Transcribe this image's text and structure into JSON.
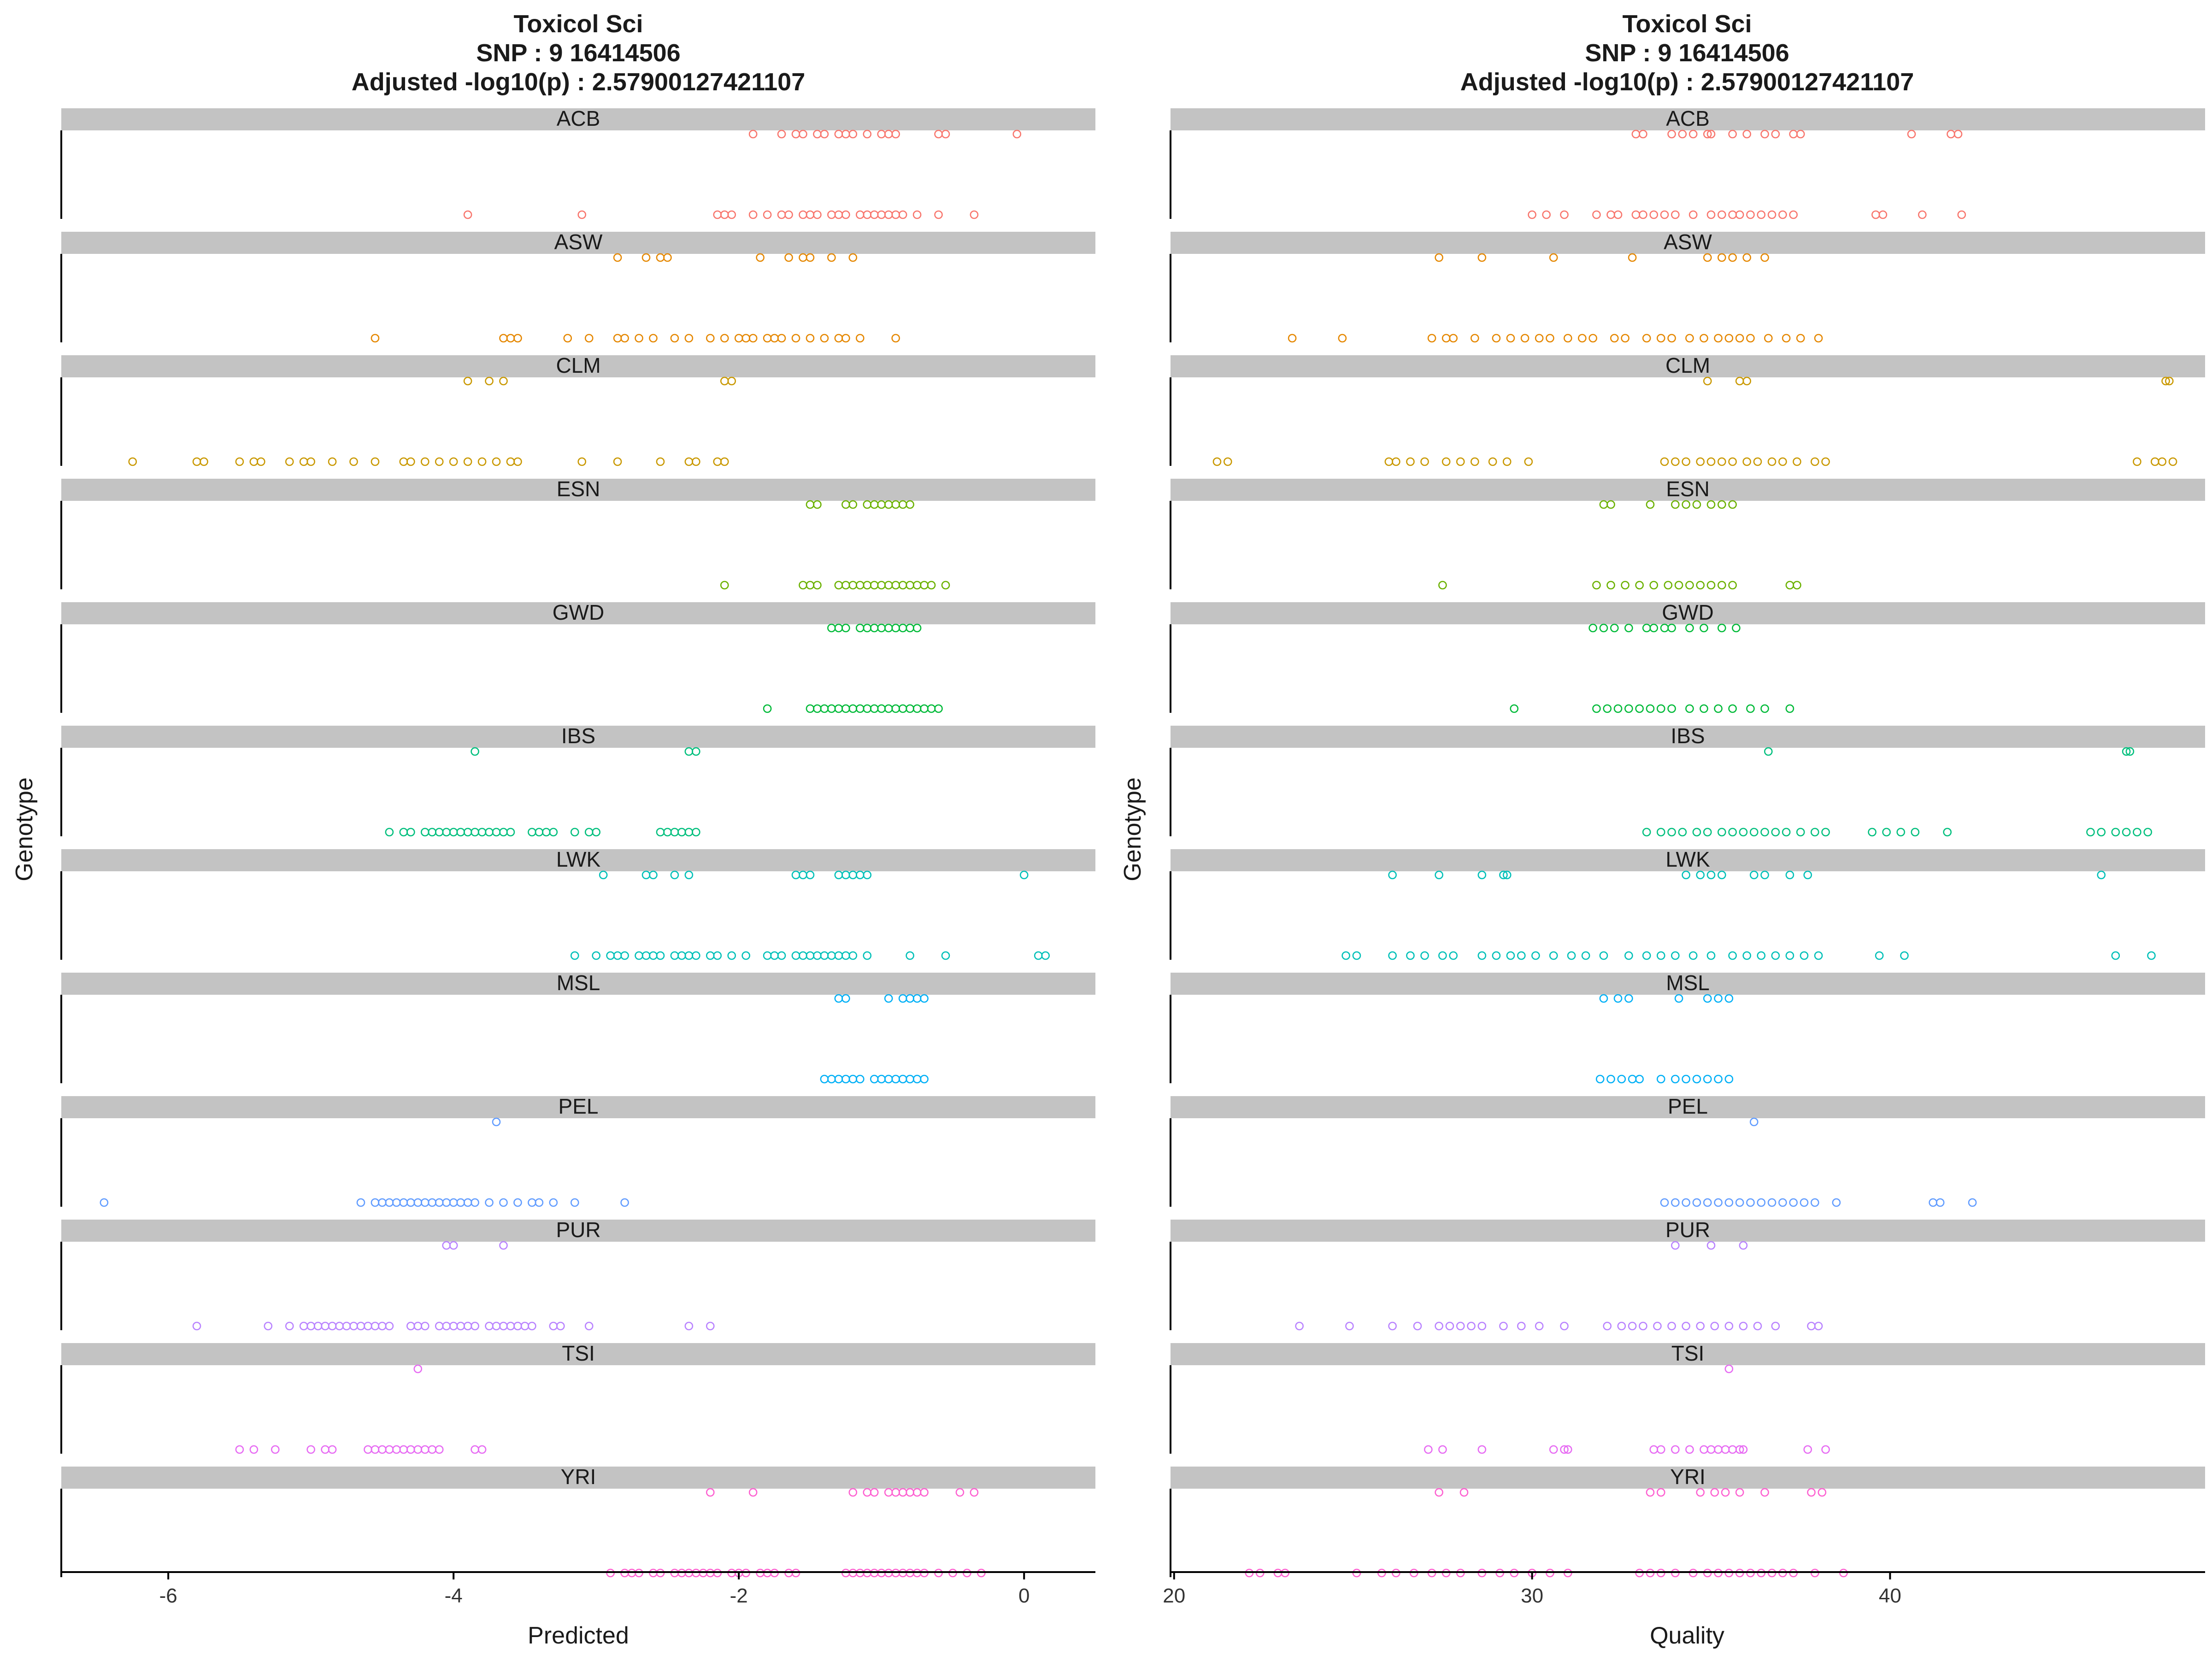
{
  "chart_data": [
    {
      "type": "scatter",
      "title": [
        "Toxicol Sci",
        "SNP :  9 16414506",
        "Adjusted -log10(p) :  2.57900127421107"
      ],
      "xlabel": "Predicted",
      "ylabel": "Genotype",
      "xlim": [
        -6.75,
        0.5
      ],
      "xticks": [
        "-6",
        "-4",
        "-2",
        "0"
      ],
      "xtick_values": [
        -6,
        -4,
        -2,
        0
      ],
      "grid": false,
      "facets": [
        {
          "name": "ACB",
          "color": "#F8766D",
          "top": [
            -1.9,
            -1.7,
            -1.6,
            -1.55,
            -1.45,
            -1.4,
            -1.3,
            -1.25,
            -1.2,
            -1.1,
            -1.0,
            -0.95,
            -0.9,
            -0.6,
            -0.55,
            -0.05
          ],
          "bottom": [
            -3.9,
            -3.1,
            -2.15,
            -2.1,
            -2.05,
            -1.9,
            -1.8,
            -1.7,
            -1.65,
            -1.55,
            -1.5,
            -1.45,
            -1.35,
            -1.3,
            -1.25,
            -1.15,
            -1.1,
            -1.05,
            -1.0,
            -0.95,
            -0.9,
            -0.85,
            -0.75,
            -0.6,
            -0.35
          ]
        },
        {
          "name": "ASW",
          "color": "#E58700",
          "top": [
            -2.85,
            -2.65,
            -2.55,
            -2.5,
            -1.85,
            -1.65,
            -1.55,
            -1.5,
            -1.35,
            -1.2
          ],
          "bottom": [
            -4.55,
            -3.65,
            -3.6,
            -3.55,
            -3.2,
            -3.05,
            -2.85,
            -2.8,
            -2.7,
            -2.6,
            -2.45,
            -2.35,
            -2.2,
            -2.1,
            -2.0,
            -1.95,
            -1.9,
            -1.8,
            -1.75,
            -1.7,
            -1.6,
            -1.5,
            -1.4,
            -1.3,
            -1.25,
            -1.15,
            -0.9
          ]
        },
        {
          "name": "CLM",
          "color": "#C99800",
          "top": [
            -3.9,
            -3.75,
            -3.65,
            -2.1,
            -2.05
          ],
          "bottom": [
            -6.25,
            -5.8,
            -5.75,
            -5.5,
            -5.4,
            -5.35,
            -5.15,
            -5.05,
            -5.0,
            -4.85,
            -4.7,
            -4.55,
            -4.35,
            -4.3,
            -4.2,
            -4.1,
            -4.0,
            -3.9,
            -3.8,
            -3.7,
            -3.6,
            -3.55,
            -3.1,
            -2.85,
            -2.55,
            -2.35,
            -2.3,
            -2.15,
            -2.1
          ]
        },
        {
          "name": "ESN",
          "color": "#6BB100",
          "top": [
            -1.5,
            -1.45,
            -1.25,
            -1.2,
            -1.1,
            -1.05,
            -1.0,
            -0.95,
            -0.9,
            -0.85,
            -0.8
          ],
          "bottom": [
            -2.1,
            -1.55,
            -1.5,
            -1.45,
            -1.3,
            -1.25,
            -1.2,
            -1.15,
            -1.1,
            -1.05,
            -1.0,
            -0.95,
            -0.9,
            -0.85,
            -0.8,
            -0.75,
            -0.7,
            -0.65,
            -0.55
          ]
        },
        {
          "name": "GWD",
          "color": "#00BA38",
          "top": [
            -1.35,
            -1.3,
            -1.25,
            -1.15,
            -1.1,
            -1.05,
            -1.0,
            -0.95,
            -0.9,
            -0.85,
            -0.8,
            -0.75
          ],
          "bottom": [
            -1.8,
            -1.5,
            -1.45,
            -1.4,
            -1.35,
            -1.3,
            -1.25,
            -1.2,
            -1.15,
            -1.1,
            -1.05,
            -1.0,
            -0.95,
            -0.9,
            -0.85,
            -0.8,
            -0.75,
            -0.7,
            -0.65,
            -0.6
          ]
        },
        {
          "name": "IBS",
          "color": "#00BF7D",
          "top": [
            -3.85,
            -2.35,
            -2.3
          ],
          "bottom": [
            -4.45,
            -4.35,
            -4.3,
            -4.2,
            -4.15,
            -4.1,
            -4.05,
            -4.0,
            -3.95,
            -3.9,
            -3.85,
            -3.8,
            -3.75,
            -3.7,
            -3.65,
            -3.6,
            -3.45,
            -3.4,
            -3.35,
            -3.3,
            -3.15,
            -3.05,
            -3.0,
            -2.55,
            -2.5,
            -2.45,
            -2.4,
            -2.35,
            -2.3
          ]
        },
        {
          "name": "LWK",
          "color": "#00C0B8",
          "top": [
            -2.95,
            -2.65,
            -2.6,
            -2.45,
            -2.35,
            -1.6,
            -1.55,
            -1.5,
            -1.3,
            -1.25,
            -1.2,
            -1.15,
            -1.1,
            -0.0
          ],
          "bottom": [
            -3.15,
            -3.0,
            -2.9,
            -2.85,
            -2.8,
            -2.7,
            -2.65,
            -2.6,
            -2.55,
            -2.45,
            -2.4,
            -2.35,
            -2.3,
            -2.2,
            -2.15,
            -2.05,
            -1.95,
            -1.8,
            -1.75,
            -1.7,
            -1.6,
            -1.55,
            -1.5,
            -1.45,
            -1.4,
            -1.35,
            -1.3,
            -1.25,
            -1.2,
            -1.1,
            -0.8,
            -0.55,
            0.1,
            0.15
          ]
        },
        {
          "name": "MSL",
          "color": "#00B0F6",
          "top": [
            -1.3,
            -1.25,
            -0.95,
            -0.85,
            -0.8,
            -0.75,
            -0.7
          ],
          "bottom": [
            -1.4,
            -1.35,
            -1.3,
            -1.25,
            -1.2,
            -1.15,
            -1.05,
            -1.0,
            -0.95,
            -0.9,
            -0.85,
            -0.8,
            -0.75,
            -0.7
          ]
        },
        {
          "name": "PEL",
          "color": "#619CFF",
          "top": [
            -3.7
          ],
          "bottom": [
            -6.45,
            -4.65,
            -4.55,
            -4.5,
            -4.45,
            -4.4,
            -4.35,
            -4.3,
            -4.25,
            -4.2,
            -4.15,
            -4.1,
            -4.05,
            -4.0,
            -3.95,
            -3.9,
            -3.85,
            -3.75,
            -3.65,
            -3.55,
            -3.45,
            -3.4,
            -3.3,
            -3.15,
            -2.8
          ]
        },
        {
          "name": "PUR",
          "color": "#B983FF",
          "top": [
            -4.05,
            -4.0,
            -3.65
          ],
          "bottom": [
            -5.8,
            -5.3,
            -5.15,
            -5.05,
            -5.0,
            -4.95,
            -4.9,
            -4.85,
            -4.8,
            -4.75,
            -4.7,
            -4.65,
            -4.6,
            -4.55,
            -4.5,
            -4.45,
            -4.3,
            -4.25,
            -4.2,
            -4.1,
            -4.05,
            -4.0,
            -3.95,
            -3.9,
            -3.85,
            -3.75,
            -3.7,
            -3.65,
            -3.6,
            -3.55,
            -3.5,
            -3.45,
            -3.3,
            -3.25,
            -3.05,
            -2.35,
            -2.2
          ]
        },
        {
          "name": "TSI",
          "color": "#E76BF3",
          "top": [
            -4.25
          ],
          "bottom": [
            -5.5,
            -5.4,
            -5.25,
            -5.0,
            -4.9,
            -4.85,
            -4.6,
            -4.55,
            -4.5,
            -4.45,
            -4.4,
            -4.35,
            -4.3,
            -4.25,
            -4.2,
            -4.15,
            -4.1,
            -3.85,
            -3.8
          ]
        },
        {
          "name": "YRI",
          "color": "#FD61D1",
          "top": [
            -2.2,
            -1.9,
            -1.2,
            -1.1,
            -1.05,
            -0.95,
            -0.9,
            -0.85,
            -0.8,
            -0.75,
            -0.7,
            -0.45,
            -0.35
          ],
          "bottom": [
            -2.9,
            -2.8,
            -2.75,
            -2.7,
            -2.6,
            -2.55,
            -2.45,
            -2.4,
            -2.35,
            -2.3,
            -2.25,
            -2.2,
            -2.15,
            -2.05,
            -2.0,
            -1.95,
            -1.85,
            -1.8,
            -1.75,
            -1.65,
            -1.6,
            -1.25,
            -1.2,
            -1.15,
            -1.1,
            -1.05,
            -1.0,
            -0.95,
            -0.9,
            -0.85,
            -0.8,
            -0.75,
            -0.7,
            -0.6,
            -0.5,
            -0.4,
            -0.3
          ]
        }
      ]
    },
    {
      "type": "scatter",
      "title": [
        "Toxicol Sci",
        "SNP :  9 16414506",
        "Adjusted -log10(p) :  2.57900127421107"
      ],
      "xlabel": "Quality",
      "ylabel": "Genotype",
      "xlim": [
        19.9,
        48.8
      ],
      "xticks": [
        "20",
        "30",
        "40"
      ],
      "xtick_values": [
        20,
        30,
        40
      ],
      "grid": false,
      "facets": [
        {
          "name": "ACB",
          "color": "#F8766D",
          "top": [
            32.9,
            33.1,
            33.9,
            34.2,
            34.5,
            34.9,
            35.0,
            35.6,
            36.0,
            36.5,
            36.8,
            37.3,
            37.5,
            40.6,
            41.7,
            41.9
          ],
          "bottom": [
            30.0,
            30.4,
            30.9,
            31.8,
            32.2,
            32.4,
            32.9,
            33.1,
            33.4,
            33.7,
            34.0,
            34.5,
            35.0,
            35.3,
            35.6,
            35.8,
            36.1,
            36.4,
            36.7,
            37.0,
            37.3,
            39.6,
            39.8,
            40.9,
            42.0
          ]
        },
        {
          "name": "ASW",
          "color": "#E58700",
          "top": [
            27.4,
            28.6,
            30.6,
            32.8,
            34.9,
            35.3,
            35.6,
            36.0,
            36.5
          ],
          "bottom": [
            23.3,
            24.7,
            27.2,
            27.6,
            27.8,
            28.4,
            29.0,
            29.4,
            29.8,
            30.2,
            30.5,
            31.0,
            31.4,
            31.7,
            32.3,
            32.6,
            33.2,
            33.6,
            33.9,
            34.4,
            34.8,
            35.2,
            35.5,
            35.8,
            36.1,
            36.6,
            37.1,
            37.5,
            38.0
          ]
        },
        {
          "name": "CLM",
          "color": "#C99800",
          "top": [
            34.9,
            35.8,
            36.0,
            47.7,
            47.8
          ],
          "bottom": [
            21.2,
            21.5,
            26.0,
            26.2,
            26.6,
            27.0,
            27.6,
            28.0,
            28.4,
            28.9,
            29.3,
            29.9,
            33.7,
            34.0,
            34.3,
            34.7,
            35.0,
            35.3,
            35.6,
            36.0,
            36.3,
            36.7,
            37.0,
            37.4,
            37.9,
            38.2,
            46.9,
            47.4,
            47.6,
            47.9
          ]
        },
        {
          "name": "ESN",
          "color": "#6BB100",
          "top": [
            32.0,
            32.2,
            33.3,
            34.0,
            34.3,
            34.6,
            35.0,
            35.3,
            35.6
          ],
          "bottom": [
            27.5,
            31.8,
            32.2,
            32.6,
            33.0,
            33.4,
            33.8,
            34.1,
            34.4,
            34.7,
            35.0,
            35.3,
            35.6,
            37.2,
            37.4
          ]
        },
        {
          "name": "GWD",
          "color": "#00BA38",
          "top": [
            31.7,
            32.0,
            32.3,
            32.7,
            33.2,
            33.4,
            33.7,
            33.9,
            34.4,
            34.8,
            35.3,
            35.7
          ],
          "bottom": [
            29.5,
            31.8,
            32.1,
            32.4,
            32.7,
            33.0,
            33.3,
            33.6,
            33.9,
            34.4,
            34.8,
            35.2,
            35.6,
            36.1,
            36.5,
            37.2
          ]
        },
        {
          "name": "IBS",
          "color": "#00BF7D",
          "top": [
            36.6,
            46.6,
            46.7
          ],
          "bottom": [
            33.2,
            33.6,
            33.9,
            34.2,
            34.6,
            34.9,
            35.3,
            35.6,
            35.9,
            36.2,
            36.5,
            36.8,
            37.1,
            37.5,
            37.9,
            38.2,
            39.5,
            39.9,
            40.3,
            40.7,
            41.6,
            45.6,
            45.9,
            46.3,
            46.6,
            46.9,
            47.2
          ]
        },
        {
          "name": "LWK",
          "color": "#00C0B8",
          "top": [
            26.1,
            27.4,
            28.6,
            29.2,
            29.3,
            34.3,
            34.7,
            35.0,
            35.3,
            36.2,
            36.5,
            37.2,
            37.7,
            45.9
          ],
          "bottom": [
            24.8,
            25.1,
            26.1,
            26.6,
            27.0,
            27.5,
            27.8,
            28.6,
            29.0,
            29.4,
            29.7,
            30.1,
            30.6,
            31.1,
            31.5,
            32.0,
            32.7,
            33.2,
            33.6,
            34.0,
            34.5,
            35.0,
            35.6,
            36.0,
            36.4,
            36.8,
            37.2,
            37.6,
            38.0,
            39.7,
            40.4,
            46.3,
            47.3
          ]
        },
        {
          "name": "MSL",
          "color": "#00B0F6",
          "top": [
            32.0,
            32.4,
            32.7,
            34.1,
            34.9,
            35.2,
            35.5
          ],
          "bottom": [
            31.9,
            32.2,
            32.5,
            32.8,
            33.0,
            33.6,
            34.0,
            34.3,
            34.6,
            34.9,
            35.2,
            35.5
          ]
        },
        {
          "name": "PEL",
          "color": "#619CFF",
          "top": [
            36.2
          ],
          "bottom": [
            33.7,
            34.0,
            34.3,
            34.6,
            34.9,
            35.2,
            35.5,
            35.8,
            36.1,
            36.4,
            36.7,
            37.0,
            37.3,
            37.6,
            37.9,
            38.5,
            41.2,
            41.4,
            42.3
          ]
        },
        {
          "name": "PUR",
          "color": "#B983FF",
          "top": [
            34.0,
            35.0,
            35.9
          ],
          "bottom": [
            23.5,
            24.9,
            26.1,
            26.8,
            27.4,
            27.7,
            28.0,
            28.3,
            28.6,
            29.2,
            29.7,
            30.2,
            30.9,
            32.1,
            32.5,
            32.8,
            33.1,
            33.5,
            33.9,
            34.3,
            34.7,
            35.1,
            35.5,
            35.9,
            36.3,
            36.8,
            37.8,
            38.0
          ]
        },
        {
          "name": "TSI",
          "color": "#E76BF3",
          "top": [
            35.5
          ],
          "bottom": [
            27.1,
            27.5,
            28.6,
            30.6,
            30.9,
            31.0,
            33.4,
            33.6,
            34.0,
            34.4,
            34.8,
            35.0,
            35.2,
            35.4,
            35.6,
            35.8,
            35.9,
            37.7,
            38.2
          ]
        },
        {
          "name": "YRI",
          "color": "#FD61D1",
          "top": [
            27.4,
            28.1,
            33.3,
            33.6,
            34.7,
            35.1,
            35.4,
            35.8,
            36.5,
            37.8,
            38.1
          ],
          "bottom": [
            22.1,
            22.4,
            22.9,
            23.1,
            25.1,
            25.8,
            26.2,
            26.7,
            27.2,
            27.6,
            28.0,
            28.6,
            29.1,
            29.5,
            30.0,
            30.5,
            31.0,
            33.0,
            33.3,
            33.6,
            34.0,
            34.5,
            34.9,
            35.2,
            35.5,
            35.8,
            36.1,
            36.4,
            36.7,
            37.0,
            37.3,
            37.9,
            38.7
          ]
        }
      ]
    }
  ]
}
